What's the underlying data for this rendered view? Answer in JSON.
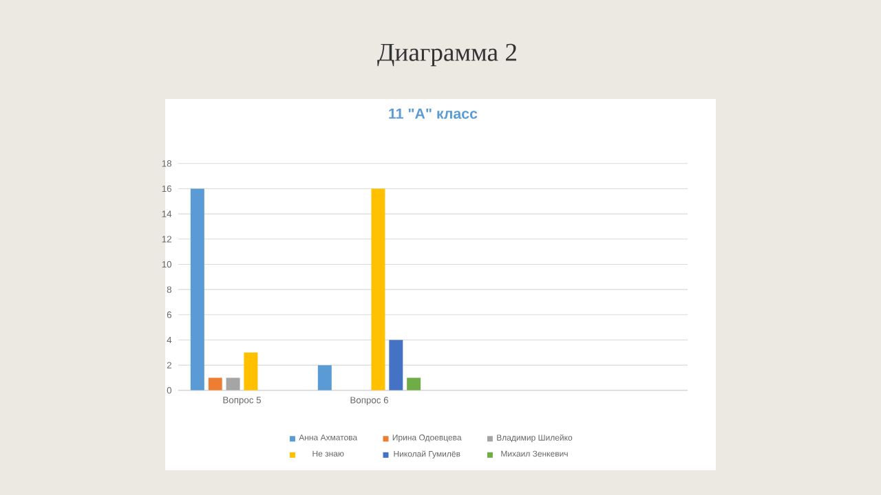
{
  "chart_data": {
    "type": "bar",
    "title": "Диаграмма 2",
    "subtitle": "11 \"А\" класс",
    "categories": [
      "Вопрос 5",
      "Вопрос 6",
      null,
      null
    ],
    "series": [
      {
        "name": "Анна Ахматова",
        "color": "#5b9bd5",
        "values": [
          16,
          2,
          null,
          null
        ]
      },
      {
        "name": "Ирина Одоевцева",
        "color": "#ed7d31",
        "values": [
          1,
          null,
          null,
          null
        ]
      },
      {
        "name": "Владимир Шилейко",
        "color": "#a5a5a5",
        "values": [
          1,
          null,
          null,
          null
        ]
      },
      {
        "name": "Не знаю",
        "color": "#ffc000",
        "values": [
          3,
          16,
          null,
          null
        ]
      },
      {
        "name": "Николай Гумилёв",
        "color": "#4472c4",
        "values": [
          null,
          4,
          null,
          null
        ]
      },
      {
        "name": "Михаил Зенкевич",
        "color": "#70ad47",
        "values": [
          null,
          1,
          null,
          null
        ]
      }
    ],
    "ylim": [
      0,
      18
    ],
    "yticks": [
      0,
      2,
      4,
      6,
      8,
      10,
      12,
      14,
      16,
      18
    ],
    "grid": "y",
    "legend": "bottom"
  }
}
